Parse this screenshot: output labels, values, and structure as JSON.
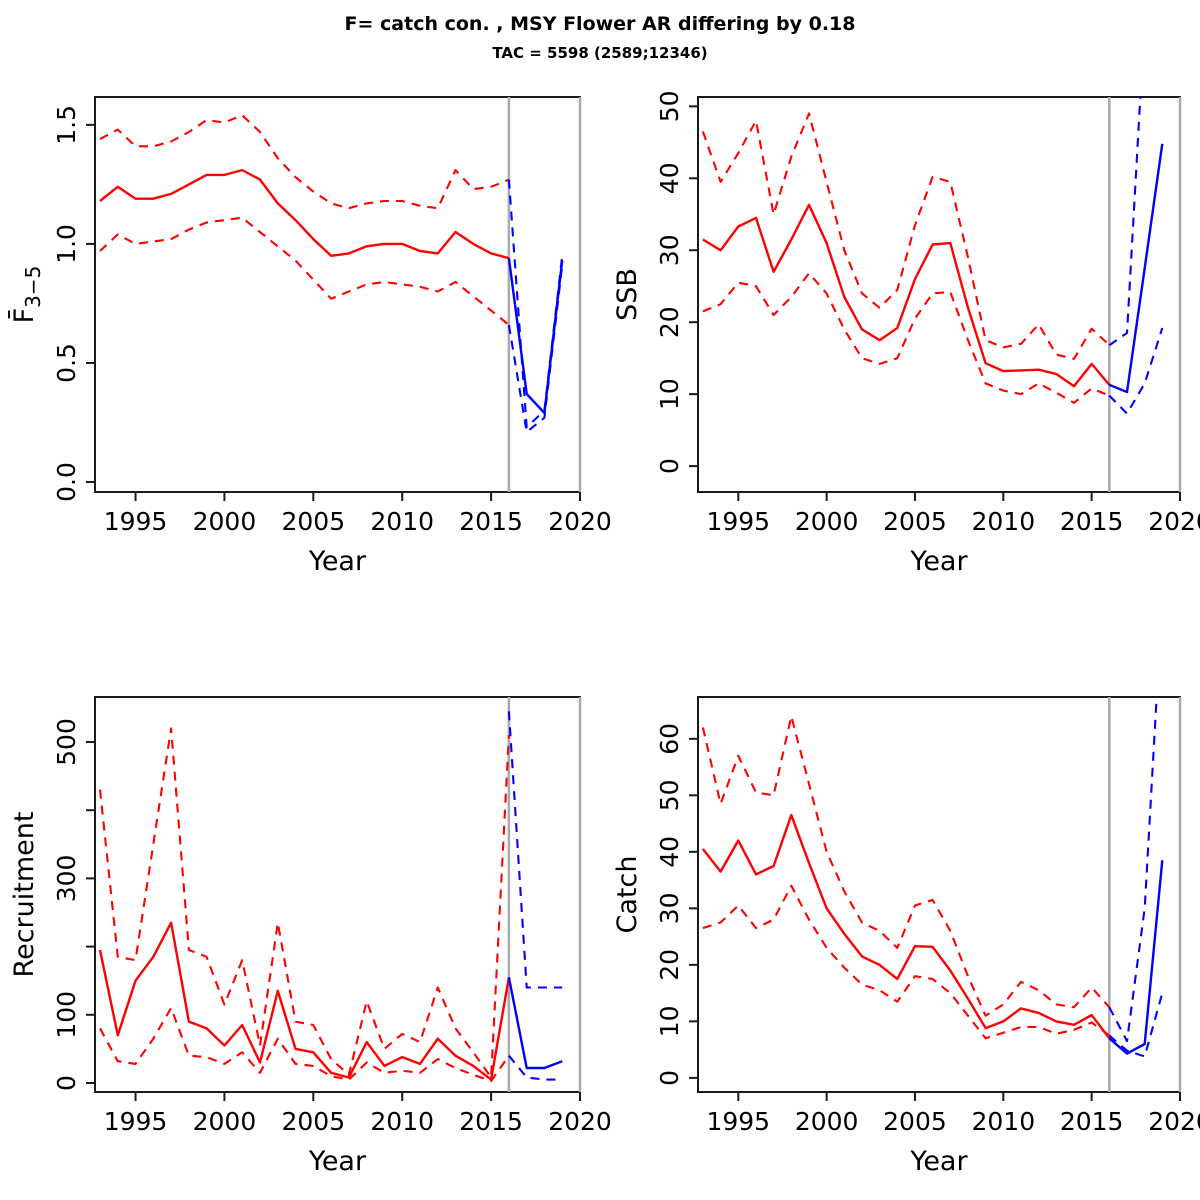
{
  "title": "F= catch con. , MSY Flower AR differing by 0.18",
  "subtitle": "TAC = 5598 (2589;12346)",
  "colors": {
    "history_line": "#ff0000",
    "forecast_line": "#0000ff",
    "reference_line": "#ababab",
    "axis": "#1a1a1a",
    "text": "#000000",
    "background": "#ffffff"
  },
  "axes": {
    "xlabel": "Year",
    "xticks": [
      1995,
      2000,
      2005,
      2010,
      2015,
      2020
    ],
    "xlim": [
      1992.72,
      2020
    ],
    "history_start_year": 1993,
    "forecast_start_year": 2016,
    "divider_year": 2016,
    "terminal_year": 2020
  },
  "chart_data": [
    {
      "id": "fbar",
      "type": "line",
      "position": "top-left",
      "ylabel": "F̄",
      "ylabel_sub": "3−5",
      "xlabel": "Year",
      "ylim": [
        -0.042,
        1.617
      ],
      "yticks": [
        {
          "v": 0.0,
          "label": "0.0"
        },
        {
          "v": 0.5,
          "label": "0.5"
        },
        {
          "v": 1.0,
          "label": "1.0"
        },
        {
          "v": 1.5,
          "label": "1.5"
        }
      ],
      "history": {
        "median": [
          1.18,
          1.24,
          1.19,
          1.19,
          1.21,
          1.25,
          1.29,
          1.29,
          1.31,
          1.27,
          1.17,
          1.1,
          1.02,
          0.95,
          0.96,
          0.99,
          1.0,
          1.0,
          0.97,
          0.96,
          1.05,
          1.0,
          0.96,
          0.94
        ],
        "upper": [
          1.44,
          1.48,
          1.41,
          1.41,
          1.43,
          1.47,
          1.52,
          1.51,
          1.54,
          1.47,
          1.36,
          1.28,
          1.22,
          1.17,
          1.15,
          1.17,
          1.18,
          1.18,
          1.16,
          1.15,
          1.31,
          1.23,
          1.24,
          1.27
        ],
        "lower": [
          0.97,
          1.04,
          1.0,
          1.01,
          1.02,
          1.06,
          1.09,
          1.1,
          1.11,
          1.05,
          0.99,
          0.93,
          0.85,
          0.77,
          0.8,
          0.83,
          0.84,
          0.83,
          0.82,
          0.8,
          0.84,
          0.78,
          0.72,
          0.66
        ]
      },
      "forecast": {
        "median": [
          0.94,
          0.37,
          0.29,
          0.93
        ],
        "upper": [
          1.27,
          0.23,
          0.3,
          0.95
        ],
        "lower": [
          0.66,
          0.21,
          0.27,
          0.91
        ]
      }
    },
    {
      "id": "ssb",
      "type": "line",
      "position": "top-right",
      "ylabel": "SSB",
      "ylabel_sub": "",
      "xlabel": "Year",
      "ylim": [
        -3.6,
        51.3
      ],
      "yticks": [
        {
          "v": 0,
          "label": "0"
        },
        {
          "v": 10,
          "label": "10"
        },
        {
          "v": 20,
          "label": "20"
        },
        {
          "v": 30,
          "label": "30"
        },
        {
          "v": 40,
          "label": "40"
        },
        {
          "v": 50,
          "label": "50"
        }
      ],
      "history": {
        "median": [
          31.5,
          30.0,
          33.3,
          34.5,
          27.0,
          31.5,
          36.3,
          31.0,
          23.5,
          19.0,
          17.5,
          19.2,
          26.0,
          30.8,
          31.0,
          22.0,
          14.3,
          13.2,
          13.3,
          13.4,
          12.8,
          11.1,
          14.2,
          11.3
        ],
        "upper": [
          46.5,
          39.5,
          43.5,
          48.0,
          35.0,
          43.0,
          49.0,
          39.5,
          30.0,
          24.0,
          22.0,
          24.5,
          33.5,
          40.2,
          39.5,
          29.0,
          17.5,
          16.5,
          17.0,
          19.7,
          15.5,
          14.9,
          19.1,
          16.8
        ],
        "lower": [
          21.5,
          22.5,
          25.5,
          25.0,
          21.0,
          23.5,
          26.8,
          24.0,
          19.0,
          15.0,
          14.2,
          15.0,
          20.5,
          24.0,
          24.2,
          17.5,
          11.5,
          10.5,
          10.0,
          11.5,
          10.2,
          8.8,
          10.8,
          9.8
        ]
      },
      "forecast": {
        "median": [
          11.3,
          10.3,
          27.5,
          44.8
        ],
        "upper": [
          16.8,
          18.5,
          62.0,
          62.0
        ],
        "lower": [
          9.8,
          7.3,
          11.5,
          19.2
        ]
      }
    },
    {
      "id": "recruitment",
      "type": "line",
      "position": "bottom-left",
      "ylabel": "Recruitment",
      "ylabel_sub": "",
      "xlabel": "Year",
      "ylim": [
        -13.2,
        566
      ],
      "yticks": [
        {
          "v": 0,
          "label": "0"
        },
        {
          "v": 100,
          "label": "100"
        },
        {
          "v": 200,
          "label": ""
        },
        {
          "v": 300,
          "label": "300"
        },
        {
          "v": 400,
          "label": ""
        },
        {
          "v": 500,
          "label": "500"
        }
      ],
      "history": {
        "median": [
          195,
          70,
          150,
          185,
          235,
          90,
          80,
          55,
          85,
          30,
          135,
          50,
          45,
          15,
          8,
          60,
          25,
          38,
          28,
          65,
          40,
          25,
          5,
          155
        ],
        "upper": [
          430,
          185,
          180,
          350,
          520,
          195,
          185,
          115,
          180,
          55,
          235,
          90,
          85,
          35,
          12,
          120,
          50,
          72,
          60,
          140,
          80,
          45,
          8,
          510
        ],
        "lower": [
          80,
          32,
          28,
          65,
          110,
          40,
          38,
          28,
          45,
          15,
          65,
          28,
          25,
          10,
          5,
          30,
          15,
          18,
          15,
          35,
          22,
          12,
          3,
          40
        ]
      },
      "forecast": {
        "median": [
          155,
          22,
          22,
          32
        ],
        "upper": [
          545,
          140,
          140,
          140
        ],
        "lower": [
          40,
          8,
          5,
          5
        ]
      }
    },
    {
      "id": "catch",
      "type": "line",
      "position": "bottom-right",
      "ylabel": "Catch",
      "ylabel_sub": "",
      "xlabel": "Year",
      "ylim": [
        -2.5,
        67.4
      ],
      "yticks": [
        {
          "v": 0,
          "label": "0"
        },
        {
          "v": 10,
          "label": "10"
        },
        {
          "v": 20,
          "label": "20"
        },
        {
          "v": 30,
          "label": "30"
        },
        {
          "v": 40,
          "label": "40"
        },
        {
          "v": 50,
          "label": "50"
        },
        {
          "v": 60,
          "label": "60"
        }
      ],
      "history": {
        "median": [
          40.5,
          36.5,
          42.0,
          36.0,
          37.5,
          46.5,
          38.0,
          30.0,
          25.5,
          21.5,
          20.0,
          17.5,
          23.3,
          23.2,
          19.0,
          14.0,
          8.8,
          10.0,
          12.3,
          11.5,
          10.0,
          9.4,
          11.1,
          7.0
        ],
        "upper": [
          62.0,
          48.5,
          57.0,
          50.5,
          50.0,
          64.0,
          52.0,
          40.0,
          33.0,
          27.5,
          26.0,
          23.0,
          30.5,
          31.5,
          26.0,
          18.0,
          11.0,
          13.0,
          17.0,
          15.5,
          13.0,
          12.5,
          16.0,
          12.5
        ],
        "lower": [
          26.5,
          27.5,
          30.5,
          26.5,
          28.0,
          34.0,
          28.0,
          23.0,
          19.5,
          16.5,
          15.5,
          13.5,
          18.0,
          17.5,
          15.0,
          11.0,
          7.0,
          8.0,
          9.0,
          9.0,
          7.8,
          8.5,
          9.8,
          7.5
        ]
      },
      "forecast": {
        "median": [
          7.0,
          4.3,
          6.0,
          38.5
        ],
        "upper": [
          12.5,
          6.5,
          30.0,
          85.0
        ],
        "lower": [
          7.5,
          4.8,
          3.8,
          15.0
        ]
      }
    }
  ]
}
